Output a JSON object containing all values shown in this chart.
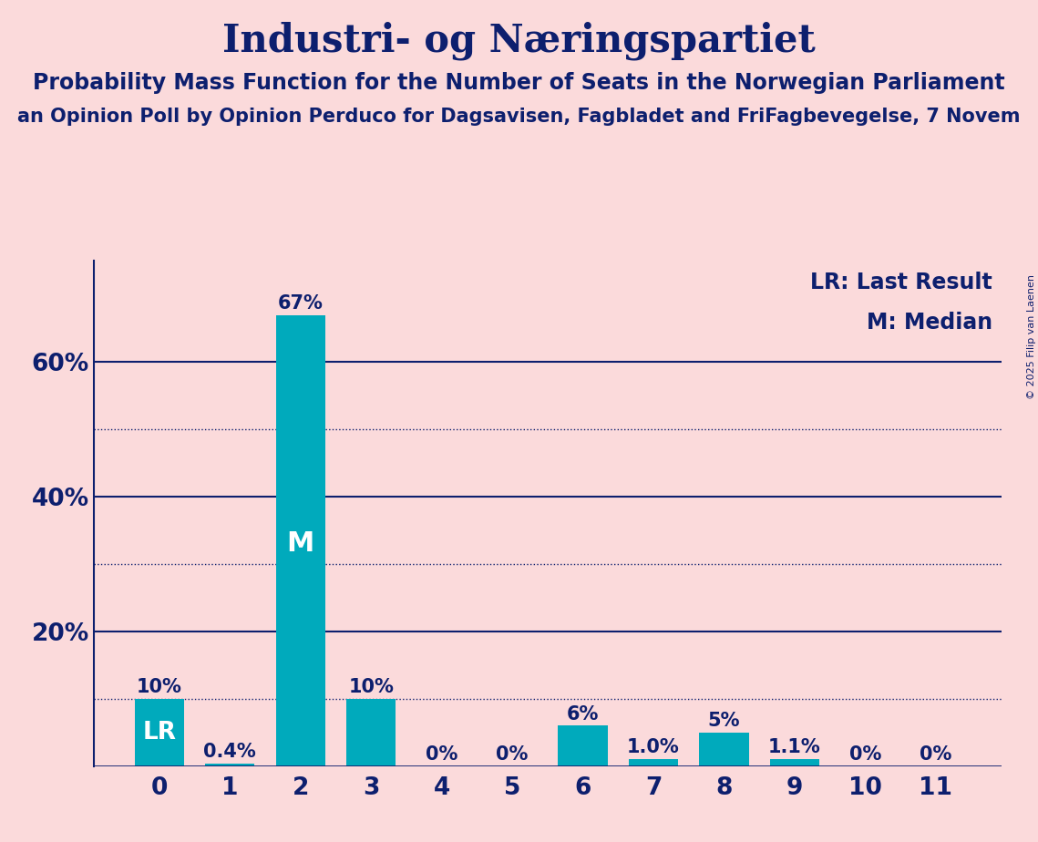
{
  "title": "Industri- og Næringspartiet",
  "subtitle": "Probability Mass Function for the Number of Seats in the Norwegian Parliament",
  "source_line": "an Opinion Poll by Opinion Perduco for Dagsavisen, Fagbladet and FriFagbevegelse, 7 Novem",
  "copyright": "© 2025 Filip van Laenen",
  "categories": [
    0,
    1,
    2,
    3,
    4,
    5,
    6,
    7,
    8,
    9,
    10,
    11
  ],
  "values": [
    0.1,
    0.004,
    0.67,
    0.1,
    0.0,
    0.0,
    0.06,
    0.01,
    0.05,
    0.011,
    0.0,
    0.0
  ],
  "labels": [
    "10%",
    "0.4%",
    "67%",
    "10%",
    "0%",
    "0%",
    "6%",
    "1.0%",
    "5%",
    "1.1%",
    "0%",
    "0%"
  ],
  "bar_color": "#00AABC",
  "lr_bar": 0,
  "median_bar": 2,
  "background_color": "#FBDADB",
  "text_color": "#0D1F6E",
  "legend_lr": "LR: Last Result",
  "legend_m": "M: Median",
  "ylim": [
    0,
    0.75
  ],
  "yticks": [
    0.0,
    0.2,
    0.4,
    0.6
  ],
  "ytick_labels": [
    "",
    "20%",
    "40%",
    "60%"
  ],
  "solid_gridlines": [
    0.2,
    0.4,
    0.6
  ],
  "dotted_gridlines": [
    0.1,
    0.3,
    0.5
  ],
  "title_fontsize": 30,
  "subtitle_fontsize": 17,
  "source_fontsize": 15,
  "bar_label_fontsize": 15,
  "axis_label_fontsize": 19,
  "legend_fontsize": 17,
  "median_label_fontsize": 22,
  "lr_label_fontsize": 19,
  "copyright_fontsize": 8
}
